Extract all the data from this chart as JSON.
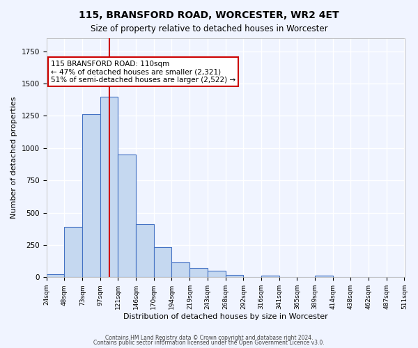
{
  "title": "115, BRANSFORD ROAD, WORCESTER, WR2 4ET",
  "subtitle": "Size of property relative to detached houses in Worcester",
  "xlabel": "Distribution of detached houses by size in Worcester",
  "ylabel": "Number of detached properties",
  "bar_color": "#c5d8f0",
  "bar_edge_color": "#4472c4",
  "background_color": "#f0f4ff",
  "grid_color": "#ffffff",
  "bins": [
    24,
    48,
    73,
    97,
    121,
    146,
    170,
    194,
    219,
    243,
    268,
    292,
    316,
    341,
    365,
    389,
    414,
    438,
    462,
    487,
    511
  ],
  "values": [
    25,
    390,
    1260,
    1400,
    950,
    410,
    235,
    115,
    70,
    48,
    20,
    0,
    15,
    0,
    0,
    15,
    0,
    0,
    0,
    0
  ],
  "tick_labels": [
    "24sqm",
    "48sqm",
    "73sqm",
    "97sqm",
    "121sqm",
    "146sqm",
    "170sqm",
    "194sqm",
    "219sqm",
    "243sqm",
    "268sqm",
    "292sqm",
    "316sqm",
    "341sqm",
    "365sqm",
    "389sqm",
    "414sqm",
    "438sqm",
    "462sqm",
    "487sqm",
    "511sqm"
  ],
  "property_size": 110,
  "vline_color": "#cc0000",
  "annotation_text": "115 BRANSFORD ROAD: 110sqm\n← 47% of detached houses are smaller (2,321)\n51% of semi-detached houses are larger (2,522) →",
  "annotation_box_color": "#ffffff",
  "annotation_box_edge": "#cc0000",
  "ylim": [
    0,
    1850
  ],
  "footer1": "Contains HM Land Registry data © Crown copyright and database right 2024.",
  "footer2": "Contains public sector information licensed under the Open Government Licence v3.0."
}
